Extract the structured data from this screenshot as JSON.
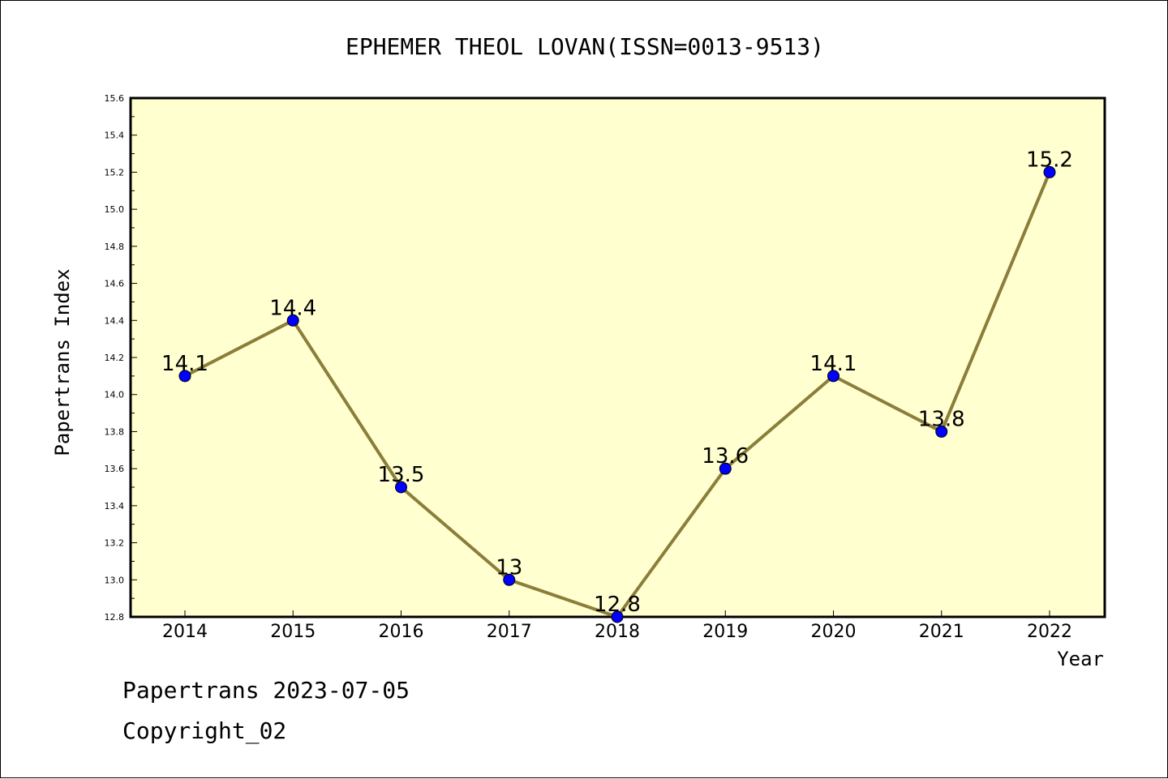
{
  "chart_data": {
    "type": "line",
    "title": "EPHEMER THEOL LOVAN(ISSN=0013-9513)",
    "xlabel": "Year",
    "ylabel": "Papertrans Index",
    "categories": [
      "2014",
      "2015",
      "2016",
      "2017",
      "2018",
      "2019",
      "2020",
      "2021",
      "2022"
    ],
    "series": [
      {
        "values": [
          14.1,
          14.4,
          13.5,
          13.0,
          12.8,
          13.6,
          14.1,
          13.8,
          15.2
        ],
        "labels": [
          "14.1",
          "14.4",
          "13.5",
          "13",
          "12.8",
          "13.6",
          "14.1",
          "13.8",
          "15.2"
        ]
      }
    ],
    "ylim": [
      12.8,
      15.6
    ],
    "yticks": [
      "12.8",
      "13.0",
      "13.2",
      "13.4",
      "13.6",
      "13.8",
      "14.0",
      "14.2",
      "14.4",
      "14.6",
      "14.8",
      "15.0",
      "15.2",
      "15.4",
      "15.6"
    ],
    "grid": false,
    "colors": {
      "plot_background": "#ffffd0",
      "line": "#8b7d3a",
      "marker": "#0000ff"
    }
  },
  "footer": {
    "line1": "Papertrans 2023-07-05",
    "line2": "Copyright_02"
  }
}
